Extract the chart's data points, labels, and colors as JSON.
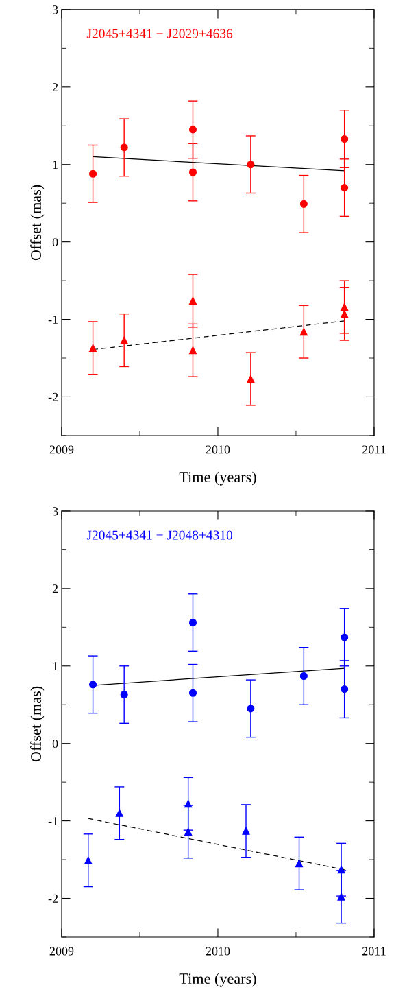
{
  "chart_data": [
    {
      "type": "scatter",
      "title": "J2045+4341 − J2029+4636",
      "xlabel": "Time (years)",
      "ylabel": "Offset (mas)",
      "xlim": [
        2009,
        2011
      ],
      "xticks": [
        2009,
        2010,
        2011
      ],
      "ylim": [
        -2.5,
        3
      ],
      "yticks": [
        -2,
        -1,
        0,
        1,
        2,
        3
      ],
      "grid": false,
      "legend": false,
      "series": [
        {
          "type": "scatter",
          "marker": "circle",
          "color": "#ff0000",
          "x": [
            2009.2,
            2009.4,
            2009.84,
            2009.84,
            2010.21,
            2010.55,
            2010.81,
            2010.81
          ],
          "values": [
            0.88,
            1.22,
            1.45,
            0.9,
            1.0,
            0.49,
            1.33,
            0.7
          ],
          "errors": [
            0.37,
            0.37,
            0.37,
            0.37,
            0.37,
            0.37,
            0.37,
            0.37
          ]
        },
        {
          "type": "scatter",
          "marker": "triangle",
          "color": "#ff0000",
          "x": [
            2009.2,
            2009.4,
            2009.84,
            2009.84,
            2010.21,
            2010.55,
            2010.81,
            2010.81
          ],
          "values": [
            -1.37,
            -1.27,
            -0.76,
            -1.4,
            -1.77,
            -1.16,
            -0.84,
            -0.93
          ],
          "errors": [
            0.34,
            0.34,
            0.34,
            0.34,
            0.34,
            0.34,
            0.34,
            0.34
          ]
        },
        {
          "type": "line",
          "line_style": "solid",
          "color": "#000000",
          "x": [
            2009.2,
            2010.81
          ],
          "values": [
            1.1,
            0.92
          ]
        },
        {
          "type": "line",
          "line_style": "dashed",
          "color": "#000000",
          "x": [
            2009.2,
            2010.81
          ],
          "values": [
            -1.39,
            -1.02
          ]
        }
      ]
    },
    {
      "type": "scatter",
      "title": "J2045+4341 − J2048+4310",
      "xlabel": "Time (years)",
      "ylabel": "Offset (mas)",
      "xlim": [
        2009,
        2011
      ],
      "xticks": [
        2009,
        2010,
        2011
      ],
      "ylim": [
        -2.5,
        3
      ],
      "yticks": [
        -2,
        -1,
        0,
        1,
        2,
        3
      ],
      "grid": false,
      "legend": false,
      "series": [
        {
          "type": "scatter",
          "marker": "circle",
          "color": "#0000ff",
          "x": [
            2009.2,
            2009.4,
            2009.84,
            2009.84,
            2010.21,
            2010.55,
            2010.81,
            2010.81
          ],
          "values": [
            0.76,
            0.63,
            1.56,
            0.65,
            0.45,
            0.87,
            1.37,
            0.7
          ],
          "errors": [
            0.37,
            0.37,
            0.37,
            0.37,
            0.37,
            0.37,
            0.37,
            0.37
          ]
        },
        {
          "type": "scatter",
          "marker": "triangle",
          "color": "#0000ff",
          "x": [
            2009.17,
            2009.37,
            2009.81,
            2009.81,
            2010.18,
            2010.52,
            2010.79,
            2010.79
          ],
          "values": [
            -1.51,
            -0.9,
            -0.78,
            -1.14,
            -1.13,
            -1.55,
            -1.63,
            -1.98
          ],
          "errors": [
            0.34,
            0.34,
            0.34,
            0.34,
            0.34,
            0.34,
            0.34,
            0.34
          ]
        },
        {
          "type": "line",
          "line_style": "solid",
          "color": "#000000",
          "x": [
            2009.2,
            2010.81
          ],
          "values": [
            0.75,
            0.97
          ]
        },
        {
          "type": "line",
          "line_style": "dashed",
          "color": "#000000",
          "x": [
            2009.17,
            2010.81
          ],
          "values": [
            -0.97,
            -1.63
          ]
        }
      ]
    }
  ]
}
